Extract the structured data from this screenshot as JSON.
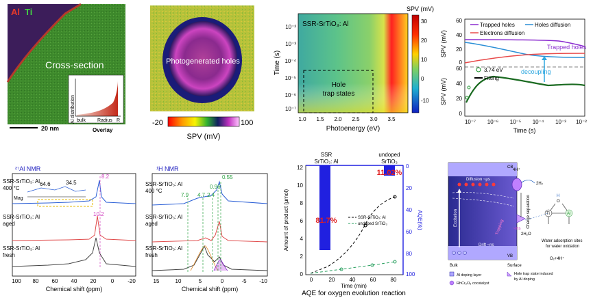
{
  "cross_section": {
    "label_al": "Al",
    "label_ti": "Ti",
    "title": "Cross-section",
    "scalebar": "20 nm",
    "overlay_label": "Overlay",
    "inset_ylabel": "Al distribution",
    "inset_xlabel": "Radius",
    "inset_bulk": "bulk",
    "inset_r": "R"
  },
  "spv_map": {
    "center_label": "Photogenerated holes",
    "colorbar_min": "-20",
    "colorbar_max": "100",
    "colorbar_label": "SPV (mV)"
  },
  "spectrum_map": {
    "title": "SSR-SrTiO₃: Al",
    "ylabel": "Time (s)",
    "xlabel": "Photoenergy (eV)",
    "colorbar_label": "SPV (mV)",
    "box_label_1": "Hole",
    "box_label_2": "trap states",
    "yticks": [
      "10⁻²",
      "10⁻³",
      "10⁻⁴",
      "10⁻⁵",
      "10⁻⁶",
      "10⁻⁷"
    ],
    "xticks": [
      "1.0",
      "1.5",
      "2.0",
      "2.5",
      "3.0",
      "3.5"
    ],
    "cbar_ticks": [
      "30",
      "20",
      "10",
      "0",
      "-10"
    ]
  },
  "transient": {
    "legend_trapped": "Trapped holes",
    "legend_diffusion": "Holes diffusion",
    "legend_electrons": "Electrons diffusion",
    "trapped_label": "Trapped holes",
    "energy_label": "3.74 eV",
    "fitting_label": "Fitting",
    "decoupling_label": "decoupling",
    "ylabel": "SPV (mV)",
    "xlabel": "Time (s)",
    "top_yticks": [
      "60",
      "40",
      "20",
      "0"
    ],
    "bottom_yticks": [
      "60",
      "40",
      "20",
      "0"
    ],
    "xticks": [
      "10⁻⁷",
      "10⁻⁶",
      "10⁻⁵",
      "10⁻⁴",
      "10⁻³",
      "10⁻²"
    ]
  },
  "al_nmr": {
    "title": "²⁷Al NMR",
    "s1a": "SSR-SrTiO₃: Al",
    "s1b": "400 °C",
    "s2a": "SSR-SrTiO₃: Al",
    "s2b": "aged",
    "s3a": "SSR-SrTiO₃: Al",
    "s3b": "fresh",
    "peak_main": "8.2",
    "peak_aged": "10.2",
    "peak_a": "64.6",
    "peak_b": "34.5",
    "mag": "Mag",
    "xlabel": "Chemical shift (ppm)",
    "xticks": [
      "100",
      "80",
      "60",
      "40",
      "20",
      "0",
      "-20"
    ]
  },
  "h_nmr": {
    "title": "¹H NMR",
    "s1a": "SSR-SrTiO₃: Al",
    "s1b": "400 °C",
    "s2a": "SSR-SrTiO₃: Al",
    "s2b": "aged",
    "s3a": "SSR-SrTiO₃: Al",
    "s3b": "fresh",
    "p1": "7.9",
    "p2": "4.7",
    "p3": "2.4",
    "p4": "0.96",
    "p5": "0.55",
    "xlabel": "Chemical shift (ppm)",
    "xticks": [
      "15",
      "10",
      "5",
      "0",
      "-5",
      "-10"
    ]
  },
  "aqe": {
    "top_label_1a": "SSR",
    "top_label_1b": "SrTiO₃: Al",
    "top_label_2a": "undoped",
    "top_label_2b": "SrTiO₃",
    "bar1_label": "81.7%",
    "bar2_label": "11.02%",
    "ylabel": "Amount of product (μmol)",
    "y2label": "AQE(%)",
    "xlabel": "Time (min)",
    "caption": "AQE for oxygen evolution reaction",
    "legend_1": "SSR-SrTiO₃: Al",
    "legend_2": "undoped SrTiO₃",
    "yticks": [
      "12",
      "10",
      "8",
      "6",
      "4",
      "2",
      "0"
    ],
    "y2ticks": [
      "0",
      "20",
      "40",
      "60",
      "80",
      "100"
    ],
    "xticks": [
      "0",
      "20",
      "40",
      "60",
      "80"
    ]
  },
  "scheme": {
    "cb": "CB",
    "vb": "VB",
    "h_plus": "4H⁺",
    "h2": "2H₂",
    "diffusion": "Diffusion ~μs",
    "excitation": "Excitation",
    "drift": "Drift ~ns",
    "trapping": "Trapping",
    "ms": "~ms",
    "charge_separation": "Charge separation",
    "h2o": "2H₂O",
    "o2": "O₂+4H⁺",
    "bulk": "Bulk",
    "surface": "Surface",
    "adsorption_1": "Water adsorption sites",
    "adsorption_2": "for water oxidation",
    "legend_doping": "Al doping layer",
    "legend_cocat": "RhCr₂O₃ cocatalyst",
    "legend_trap_1": "Hole trap state induced",
    "legend_trap_2": "by Al doping",
    "ti": "Ti",
    "al": "Al",
    "o": "O",
    "h": "H"
  }
}
